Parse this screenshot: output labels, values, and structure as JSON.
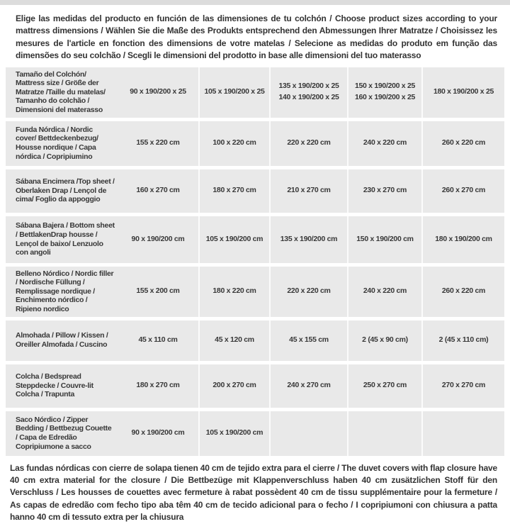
{
  "page": {
    "intro_text": "Elige las medidas del producto en función de las dimensiones de tu colchón / Choose product sizes according to your mattress dimensions / Wählen Sie die Maße des Produkts entsprechend den Abmessungen Ihrer Matratze / Choisissez les mesures de l'article en fonction des dimensions de votre matelas / Selecione as medidas do produto em função das dimensões do seu colchão / Scegli le dimensioni del prodotto in base alle dimensioni del tuo materasso",
    "note_text": "Las fundas nórdicas con cierre de solapa tienen 40 cm de tejido extra para el cierre  / The duvet covers with flap closure have 40 cm extra material for the closure / Die Bettbezüge mit Klappenverschluss haben 40 cm zusätzlichen Stoff für den Verschluss / Les housses de couettes avec fermeture à rabat possèdent 40 cm de tissu supplémentaire pour la fermeture / As capas de edredão com fecho tipo aba têm 40 cm de tecido adicional para o fecho / I copripiumoni con chiusura a patta hanno 40 cm di tessuto extra per la chiusura"
  },
  "colors": {
    "cell_background": "#e9e9e9",
    "separator": "#fbfbfb",
    "text": "#383838",
    "top_strip": "#dcdcdc"
  },
  "table": {
    "rows": [
      {
        "label": "Tamaño del Colchón/ Mattress size / Größe der Matratze /Taille du matelas/ Tamanho do colchão / Dimensioni del materasso",
        "values": [
          "90 x 190/200 x 25",
          "105 x 190/200 x 25",
          "135 x 190/200 x 25\n140 x 190/200 x 25",
          "150 x 190/200 x 25\n160 x 190/200 x 25",
          "180 x 190/200 x 25"
        ]
      },
      {
        "label": "Funda Nórdica /  Nordic cover/ Bettdeckenbezug/ Housse nordique  / Capa nórdica / Copripiumino",
        "values": [
          "155 x 220 cm",
          "100 x 220 cm",
          "220 x 220 cm",
          "240 x 220 cm",
          "260 x 220 cm"
        ]
      },
      {
        "label": "Sábana Encimera /Top sheet / Oberlaken Drap / Lençol de cima/ Foglio da appoggio",
        "values": [
          "160 x 270 cm",
          "180 x 270 cm",
          "210 x 270 cm",
          "230 x 270 cm",
          "260 x 270 cm"
        ]
      },
      {
        "label": "Sábana Bajera / Bottom sheet / BettlakenDrap housse / Lençol de baixo/ Lenzuolo con angoli",
        "values": [
          "90 x 190/200 cm",
          "105 x 190/200 cm",
          "135 x 190/200 cm",
          "150 x 190/200 cm",
          "180 x 190/200 cm"
        ]
      },
      {
        "label": "Belleno Nórdico / Nordic filler / Nordische Füllung / Remplissage nordique / Enchimento nórdico / Ripieno nordico",
        "values": [
          "155 x 200 cm",
          "180 x 220 cm",
          "220 x 220 cm",
          "240 x 220 cm",
          "260 x 220 cm"
        ]
      },
      {
        "label": "Almohada  / Pillow / Kissen / Oreiller Almofada / Cuscino",
        "values": [
          "45 x 110 cm",
          "45 x 120 cm",
          "45 x 155 cm",
          "2 (45 x 90 cm)",
          "2 (45 x 110 cm)"
        ]
      },
      {
        "label": "Colcha / Bedspread Steppdecke / Couvre-lit Colcha / Trapunta",
        "values": [
          "180 x 270 cm",
          "200 x 270 cm",
          "240 x 270 cm",
          "250 x 270 cm",
          "270 x 270 cm"
        ]
      },
      {
        "label": "Saco Nórdico / Zipper Bedding / Bettbezug Couette  / Capa de Edredão Copripiumone a sacco",
        "values": [
          "90 x 190/200 cm",
          "105 x 190/200 cm",
          "",
          "",
          ""
        ]
      }
    ]
  }
}
